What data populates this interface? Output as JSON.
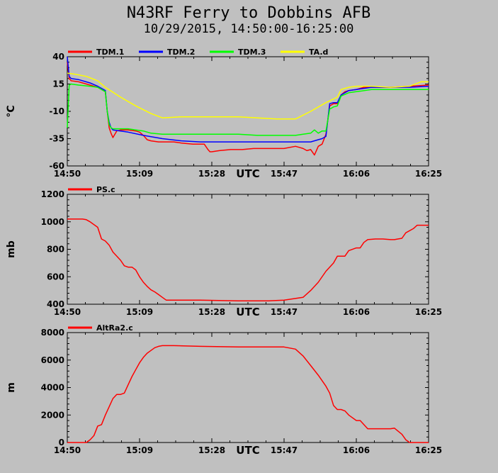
{
  "title": "N43RF Ferry to Dobbins AFB",
  "subtitle": "10/29/2015, 14:50:00-16:25:00",
  "chart_data": [
    {
      "type": "line",
      "ylabel": "°C",
      "xlabel": "UTC",
      "ylim": [
        -60,
        40
      ],
      "yticks": [
        "40",
        "15",
        "-10",
        "-35",
        "-60"
      ],
      "xlim_minutes": [
        0,
        95
      ],
      "xticks": [
        "14:50",
        "15:09",
        "15:28",
        "15:47",
        "16:06",
        "16:25"
      ],
      "grid": false,
      "legend": "top",
      "series": [
        {
          "name": "TDM.1",
          "color": "#ff0000",
          "x": [
            0,
            0.5,
            1,
            3,
            6,
            8,
            9,
            10,
            10.5,
            11,
            11.5,
            12,
            13,
            14,
            16,
            18,
            19,
            20,
            21,
            22,
            24,
            26,
            28,
            30,
            33,
            36,
            37,
            37.5,
            38,
            40,
            43,
            46,
            49,
            52,
            54,
            57,
            60,
            61,
            62,
            63,
            64,
            65,
            66,
            67,
            68,
            69,
            70,
            71,
            72,
            73,
            74,
            76,
            78,
            80,
            85,
            90,
            95
          ],
          "y": [
            35,
            20,
            18,
            17,
            14,
            12,
            10,
            8,
            -10,
            -25,
            -30,
            -34,
            -28,
            -27,
            -27,
            -28,
            -29,
            -32,
            -36,
            -37,
            -38,
            -38,
            -38,
            -39,
            -40,
            -40,
            -45,
            -47,
            -47,
            -46,
            -45,
            -45,
            -44,
            -44,
            -44,
            -44,
            -42,
            -43,
            -44,
            -46,
            -45,
            -50,
            -42,
            -40,
            -31,
            -5,
            -3,
            -3,
            5,
            8,
            9,
            10,
            12,
            12,
            12,
            13,
            14
          ]
        },
        {
          "name": "TDM.2",
          "color": "#0000ff",
          "x": [
            0,
            0.5,
            1,
            3,
            6,
            8,
            9,
            10,
            10.5,
            11,
            11.5,
            12,
            14,
            16,
            20,
            25,
            30,
            35,
            40,
            45,
            50,
            55,
            60,
            64,
            66,
            67,
            68,
            69,
            70,
            71,
            72,
            74,
            76,
            80,
            85,
            90,
            95
          ],
          "y": [
            40,
            22,
            20,
            19,
            16,
            13,
            11,
            9,
            -10,
            -20,
            -25,
            -27,
            -28,
            -29,
            -32,
            -35,
            -37,
            -38,
            -38,
            -38,
            -38,
            -38,
            -38,
            -38,
            -36,
            -35,
            -33,
            -3,
            -2,
            -2,
            5,
            9,
            10,
            12,
            12,
            12,
            13
          ]
        },
        {
          "name": "TDM.3",
          "color": "#00ff00",
          "x": [
            0,
            0.5,
            1,
            3,
            6,
            8,
            9,
            10,
            10.5,
            11,
            11.5,
            12,
            14,
            16,
            18,
            20,
            22,
            25,
            30,
            35,
            40,
            45,
            50,
            55,
            60,
            62,
            64,
            65,
            66,
            67,
            68,
            69,
            70,
            71,
            72,
            74,
            76,
            80,
            85,
            90,
            95
          ],
          "y": [
            -25,
            14,
            15,
            14,
            13,
            12,
            10,
            8,
            -10,
            -22,
            -25,
            -26,
            -26,
            -26,
            -27,
            -28,
            -30,
            -31,
            -31,
            -31,
            -31,
            -31,
            -32,
            -32,
            -32,
            -31,
            -30,
            -27,
            -30,
            -28,
            -28,
            -8,
            -6,
            -5,
            4,
            7,
            8,
            10,
            10,
            10,
            10
          ]
        },
        {
          "name": "TA.d",
          "color": "#ffff00",
          "x": [
            0,
            2,
            5,
            8,
            10,
            14,
            18,
            22,
            25,
            30,
            35,
            40,
            45,
            50,
            55,
            60,
            64,
            68,
            71,
            72,
            74,
            76,
            80,
            85,
            90,
            93,
            95
          ],
          "y": [
            25,
            24,
            22,
            18,
            12,
            3,
            -5,
            -12,
            -16,
            -15,
            -15,
            -15,
            -15,
            -16,
            -17,
            -17,
            -10,
            -2,
            3,
            10,
            12,
            13,
            13,
            12,
            13,
            17,
            17
          ]
        }
      ]
    },
    {
      "type": "line",
      "ylabel": "mb",
      "xlabel": "UTC",
      "ylim": [
        400,
        1200
      ],
      "yticks": [
        "1200",
        "1000",
        "800",
        "600",
        "400"
      ],
      "xlim_minutes": [
        0,
        95
      ],
      "xticks": [
        "14:50",
        "15:09",
        "15:28",
        "15:47",
        "16:06",
        "16:25"
      ],
      "grid": false,
      "legend": "top",
      "series": [
        {
          "name": "PS.c",
          "color": "#ff0000",
          "x": [
            0,
            4,
            5,
            6,
            8,
            9,
            10,
            11,
            12,
            14,
            15,
            16,
            17,
            18,
            19,
            20,
            21,
            22,
            23,
            24,
            25,
            26,
            28,
            35,
            45,
            53,
            57,
            62,
            64,
            66,
            68,
            70,
            71,
            72,
            73,
            74,
            76,
            77,
            78,
            79,
            81,
            83,
            85,
            86,
            88,
            89,
            91,
            92,
            95
          ],
          "y": [
            1020,
            1020,
            1015,
            1000,
            960,
            875,
            860,
            830,
            780,
            720,
            680,
            670,
            670,
            650,
            600,
            560,
            530,
            505,
            490,
            470,
            450,
            430,
            430,
            430,
            425,
            425,
            430,
            450,
            500,
            560,
            640,
            700,
            750,
            750,
            750,
            790,
            810,
            810,
            850,
            870,
            875,
            875,
            870,
            870,
            880,
            920,
            950,
            975,
            975
          ]
        }
      ]
    },
    {
      "type": "line",
      "ylabel": "m",
      "xlabel": "UTC",
      "ylim": [
        0,
        8000
      ],
      "yticks": [
        "8000",
        "6000",
        "4000",
        "2000",
        "0"
      ],
      "xlim_minutes": [
        0,
        95
      ],
      "xticks": [
        "14:50",
        "15:09",
        "15:28",
        "15:47",
        "16:06",
        "16:25"
      ],
      "grid": false,
      "legend": "top",
      "series": [
        {
          "name": "AltRa2.c",
          "color": "#ff0000",
          "x": [
            0,
            5,
            6,
            7,
            8,
            9,
            10,
            11,
            12,
            13,
            13.5,
            14,
            15,
            16,
            17,
            18,
            19,
            20,
            21,
            22,
            23,
            24,
            25,
            28,
            35,
            45,
            53,
            57,
            60,
            62,
            64,
            66,
            68,
            69,
            70,
            71,
            72,
            73,
            74,
            76,
            77,
            78,
            79,
            80,
            82,
            84,
            85,
            86,
            88,
            89,
            90,
            95
          ],
          "y": [
            0,
            0,
            200,
            500,
            1200,
            1300,
            2000,
            2600,
            3200,
            3500,
            3500,
            3500,
            3600,
            4200,
            4800,
            5300,
            5800,
            6200,
            6500,
            6700,
            6900,
            7000,
            7050,
            7050,
            7000,
            6950,
            6950,
            6950,
            6800,
            6300,
            5600,
            4900,
            4100,
            3600,
            2700,
            2400,
            2400,
            2300,
            2000,
            1600,
            1600,
            1300,
            1000,
            1000,
            1000,
            1000,
            1000,
            1050,
            600,
            200,
            0,
            0
          ]
        }
      ]
    }
  ]
}
